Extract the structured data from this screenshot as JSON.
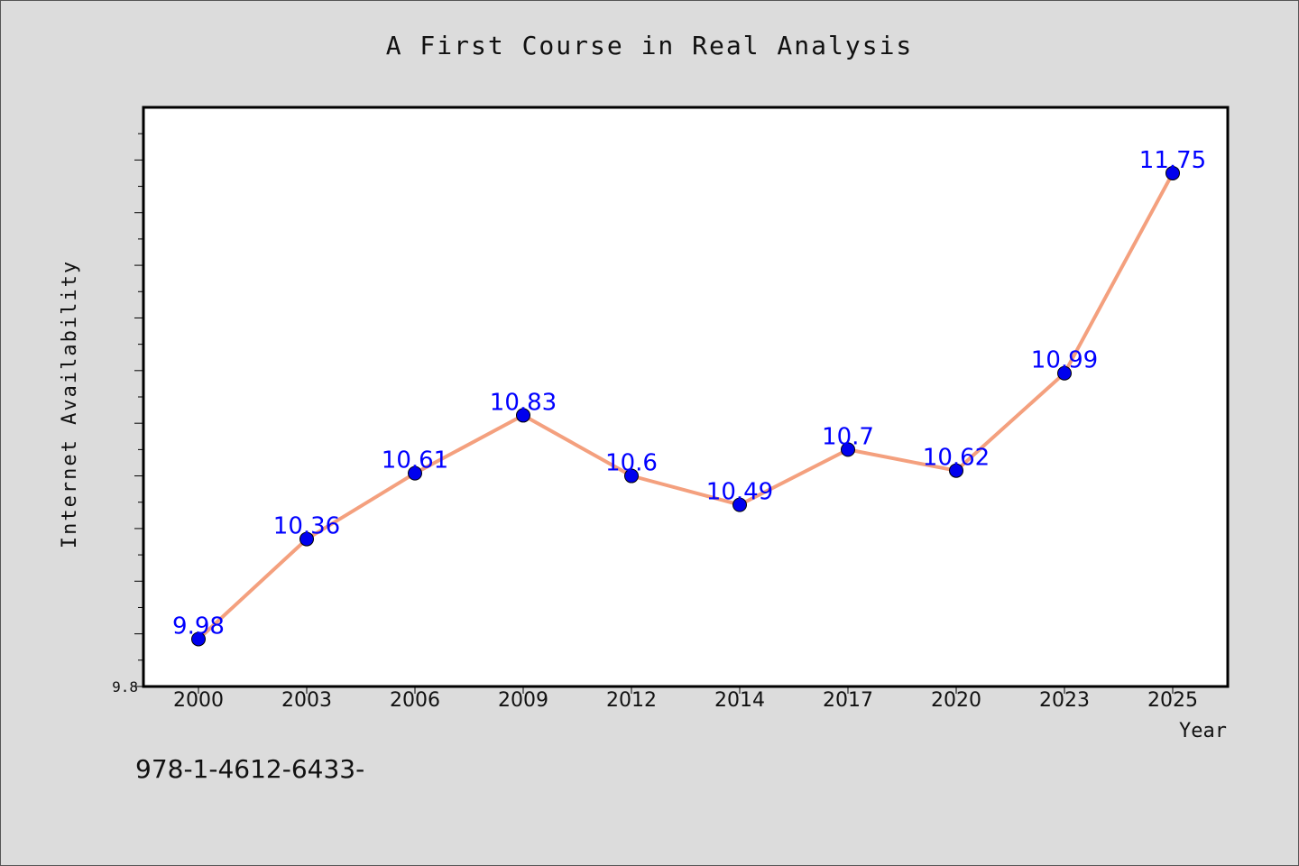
{
  "chart_data": {
    "type": "line",
    "title": "A First Course in Real Analysis",
    "xlabel": "Year",
    "ylabel": "Internet Availability",
    "categories": [
      "2000",
      "2003",
      "2006",
      "2009",
      "2012",
      "2014",
      "2017",
      "2020",
      "2023",
      "2025"
    ],
    "series": [
      {
        "values": [
          9.98,
          10.36,
          10.61,
          10.83,
          10.6,
          10.49,
          10.7,
          10.62,
          10.99,
          11.75
        ]
      }
    ],
    "data_labels": [
      "9.98",
      "10.36",
      "10.61",
      "10.83",
      "10.6",
      "10.49",
      "10.7",
      "10.62",
      "10.99",
      "11.75"
    ],
    "ylim": [
      9.8,
      12.0
    ],
    "y_tick_labels": [
      "9.8"
    ],
    "grid": false,
    "line_color": "#f4a07e",
    "marker_color": "#0000ee",
    "label_color": "#0000ff"
  },
  "footer_note": "978-1-4612-6433-"
}
